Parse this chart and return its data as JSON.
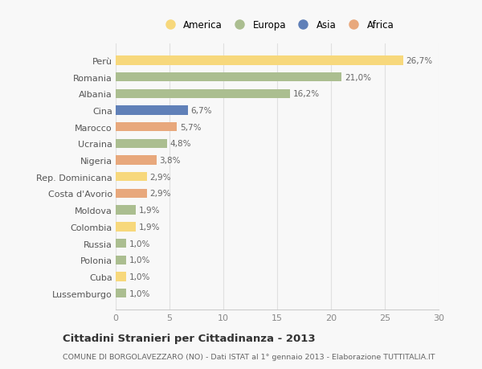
{
  "countries": [
    "Perù",
    "Romania",
    "Albania",
    "Cina",
    "Marocco",
    "Ucraina",
    "Nigeria",
    "Rep. Dominicana",
    "Costa d'Avorio",
    "Moldova",
    "Colombia",
    "Russia",
    "Polonia",
    "Cuba",
    "Lussemburgo"
  ],
  "values": [
    26.7,
    21.0,
    16.2,
    6.7,
    5.7,
    4.8,
    3.8,
    2.9,
    2.9,
    1.9,
    1.9,
    1.0,
    1.0,
    1.0,
    1.0
  ],
  "labels": [
    "26,7%",
    "21,0%",
    "16,2%",
    "6,7%",
    "5,7%",
    "4,8%",
    "3,8%",
    "2,9%",
    "2,9%",
    "1,9%",
    "1,9%",
    "1,0%",
    "1,0%",
    "1,0%",
    "1,0%"
  ],
  "continents": [
    "America",
    "Europa",
    "Europa",
    "Asia",
    "Africa",
    "Europa",
    "Africa",
    "America",
    "Africa",
    "Europa",
    "America",
    "Europa",
    "Europa",
    "America",
    "Europa"
  ],
  "colors": {
    "America": "#F7D87C",
    "Europa": "#ABBE90",
    "Asia": "#6080B8",
    "Africa": "#E8A87C"
  },
  "legend_order": [
    "America",
    "Europa",
    "Asia",
    "Africa"
  ],
  "legend_colors": [
    "#F7D87C",
    "#ABBE90",
    "#6080B8",
    "#E8A87C"
  ],
  "title": "Cittadini Stranieri per Cittadinanza - 2013",
  "subtitle": "COMUNE DI BORGOLAVEZZARO (NO) - Dati ISTAT al 1° gennaio 2013 - Elaborazione TUTTITALIA.IT",
  "xlim": [
    0,
    30
  ],
  "xticks": [
    0,
    5,
    10,
    15,
    20,
    25,
    30
  ],
  "bg_color": "#f8f8f8",
  "grid_color": "#e0e0e0"
}
